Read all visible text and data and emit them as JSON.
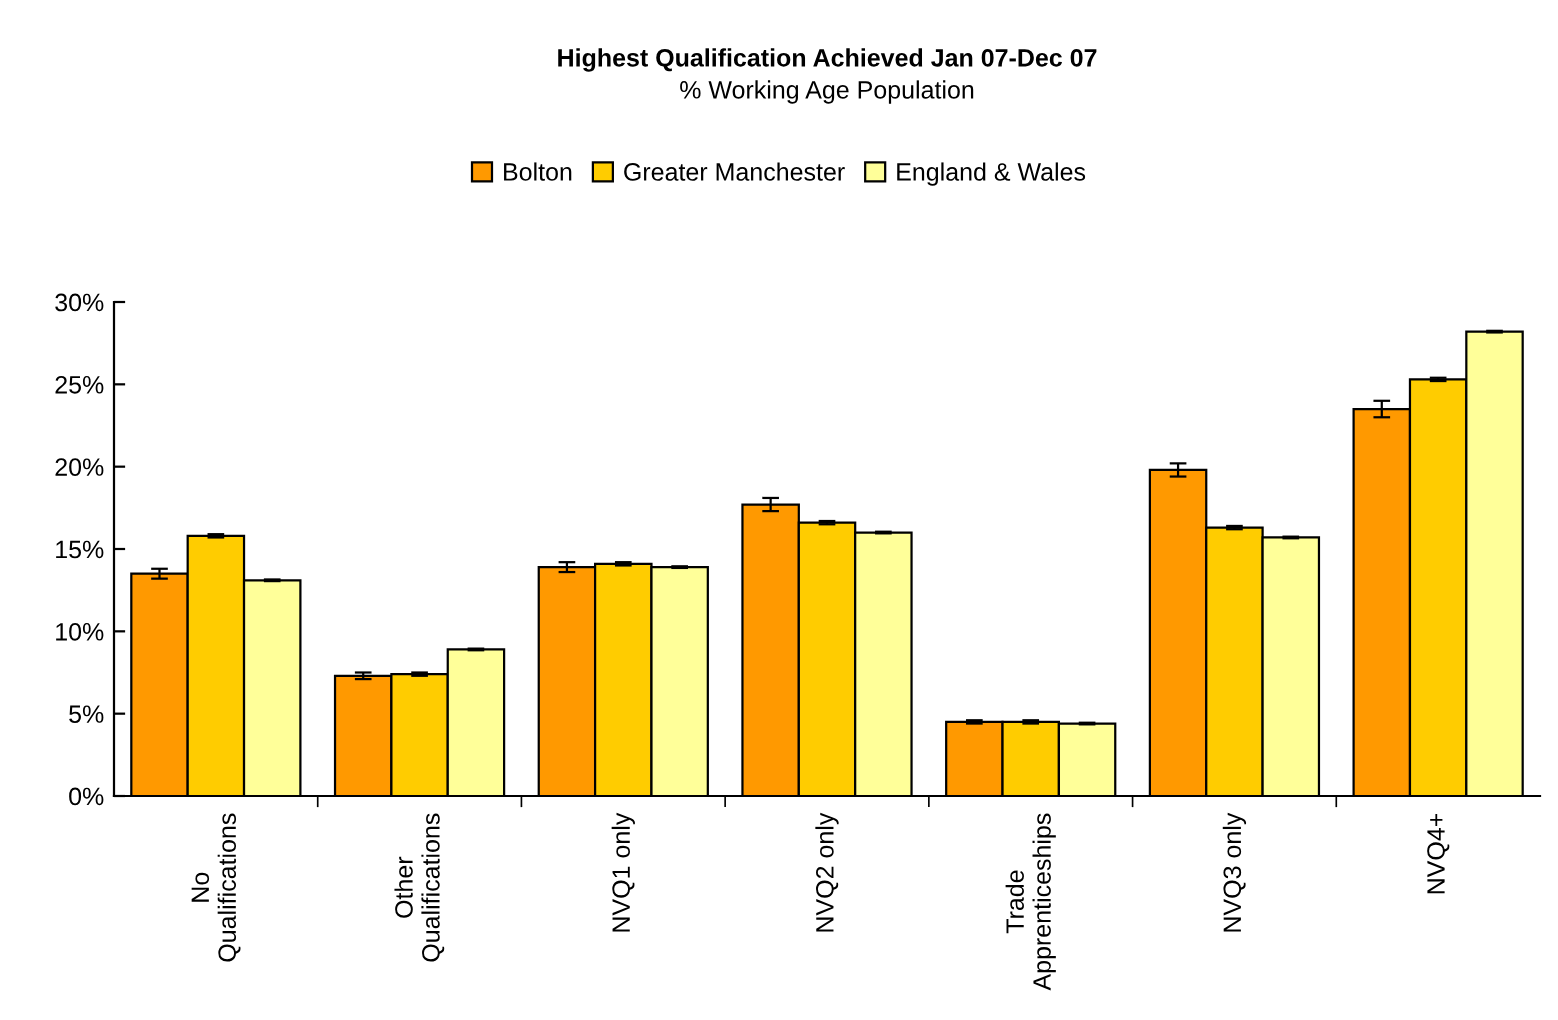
{
  "chart_data": {
    "type": "bar",
    "title": "Highest Qualification Achieved Jan 07-Dec 07",
    "subtitle": "% Working Age Population",
    "categories": [
      "No\nQualifications",
      "Other\nQualifications",
      "NVQ1 only",
      "NVQ2 only",
      "Trade\nApprenticeships",
      "NVQ3 only",
      "NVQ4+"
    ],
    "series": [
      {
        "name": "Bolton",
        "color": "#ff9900",
        "values": [
          13.5,
          7.3,
          13.9,
          17.7,
          4.5,
          19.8,
          23.5
        ],
        "errors": [
          0.3,
          0.2,
          0.3,
          0.4,
          0.1,
          0.4,
          0.5
        ]
      },
      {
        "name": "Greater Manchester",
        "color": "#ffcc00",
        "values": [
          15.8,
          7.4,
          14.1,
          16.6,
          4.5,
          16.3,
          25.3
        ],
        "errors": [
          0.1,
          0.1,
          0.1,
          0.1,
          0.1,
          0.1,
          0.1
        ]
      },
      {
        "name": "England & Wales",
        "color": "#ffff99",
        "values": [
          13.1,
          8.9,
          13.9,
          16.0,
          4.4,
          15.7,
          28.2
        ],
        "errors": [
          0.05,
          0.05,
          0.05,
          0.05,
          0.05,
          0.05,
          0.05
        ]
      }
    ],
    "ylim": [
      0,
      30
    ],
    "yticks": [
      {
        "value": 0,
        "label": "0%"
      },
      {
        "value": 5,
        "label": "5%"
      },
      {
        "value": 10,
        "label": "10%"
      },
      {
        "value": 15,
        "label": "15%"
      },
      {
        "value": 20,
        "label": "20%"
      },
      {
        "value": 25,
        "label": "25%"
      },
      {
        "value": 30,
        "label": "30%"
      }
    ],
    "legend": "top",
    "grid": false
  }
}
